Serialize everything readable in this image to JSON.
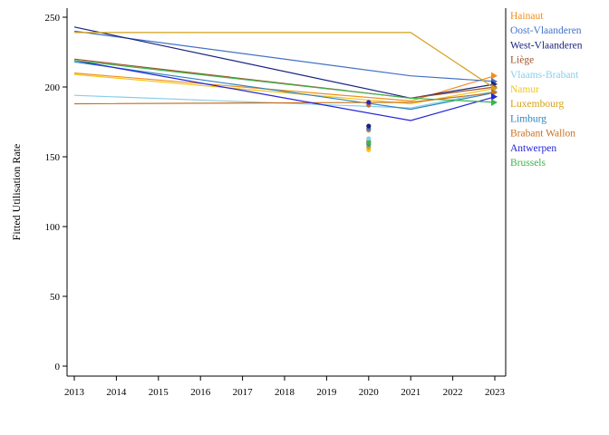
{
  "chart_data": {
    "type": "line",
    "title": "",
    "xlabel": "",
    "ylabel": "Fitted Utilisation Rate",
    "xlim": [
      2013,
      2023
    ],
    "ylim": [
      0,
      250
    ],
    "x_ticks": [
      2013,
      2014,
      2015,
      2016,
      2017,
      2018,
      2019,
      2020,
      2021,
      2022,
      2023
    ],
    "y_ticks": [
      0,
      50,
      100,
      150,
      200,
      250
    ],
    "grid": false,
    "legend_position": "right",
    "series": [
      {
        "name": "Hainaut",
        "color": "#F28E1C",
        "points": [
          [
            2013,
            210
          ],
          [
            2021,
            190
          ],
          [
            2023,
            208
          ]
        ],
        "marker_2020": 169
      },
      {
        "name": "Oost-Vlaanderen",
        "color": "#4472C4",
        "points": [
          [
            2013,
            240
          ],
          [
            2021,
            208
          ],
          [
            2023,
            204
          ]
        ],
        "marker_2020": 170
      },
      {
        "name": "West-Vlaanderen",
        "color": "#1A237E",
        "points": [
          [
            2013,
            243
          ],
          [
            2021,
            192
          ],
          [
            2023,
            202
          ]
        ],
        "marker_2020": 172
      },
      {
        "name": "Liège",
        "color": "#A0522D",
        "points": [
          [
            2013,
            220
          ],
          [
            2021,
            192
          ],
          [
            2023,
            200
          ]
        ],
        "marker_2020": 161
      },
      {
        "name": "Vlaams-Brabant",
        "color": "#87CEEB",
        "points": [
          [
            2013,
            194
          ],
          [
            2021,
            185
          ],
          [
            2023,
            197
          ]
        ],
        "marker_2020": 163
      },
      {
        "name": "Namur",
        "color": "#F5C518",
        "points": [
          [
            2013,
            209
          ],
          [
            2021,
            188
          ],
          [
            2023,
            199
          ]
        ],
        "marker_2020": 155
      },
      {
        "name": "Luxembourg",
        "color": "#D4A017",
        "points": [
          [
            2013,
            239
          ],
          [
            2021,
            239
          ],
          [
            2023,
            199
          ]
        ],
        "marker_2020": 157
      },
      {
        "name": "Limburg",
        "color": "#2E86C1",
        "points": [
          [
            2013,
            218
          ],
          [
            2021,
            184
          ],
          [
            2023,
            196
          ]
        ],
        "marker_2020": 159
      },
      {
        "name": "Brabant Wallon",
        "color": "#C8711F",
        "points": [
          [
            2013,
            188
          ],
          [
            2021,
            189
          ],
          [
            2023,
            196
          ]
        ],
        "marker_2020": 187
      },
      {
        "name": "Antwerpen",
        "color": "#2424D9",
        "points": [
          [
            2013,
            219
          ],
          [
            2021,
            176
          ],
          [
            2023,
            193
          ]
        ],
        "marker_2020": 189
      },
      {
        "name": "Brussels",
        "color": "#3CB44B",
        "points": [
          [
            2013,
            219
          ],
          [
            2021,
            192
          ],
          [
            2023,
            189
          ]
        ],
        "marker_2020": 160
      }
    ]
  }
}
